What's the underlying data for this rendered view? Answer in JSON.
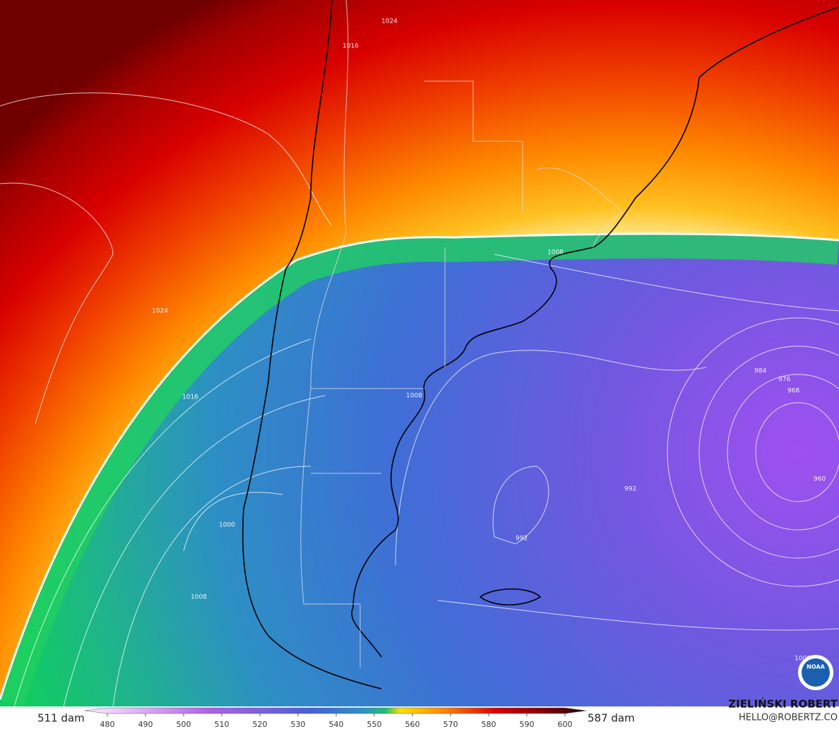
{
  "map": {
    "contour_labels": [
      "1024",
      "1016",
      "1016",
      "1024",
      "1008",
      "1008",
      "1000",
      "1008",
      "992",
      "984",
      "976",
      "968",
      "960",
      "992",
      "1000"
    ],
    "logo": "NOAA"
  },
  "colorbar": {
    "min_label": "511 dam",
    "max_label": "587 dam",
    "ticks": [
      480,
      490,
      500,
      510,
      520,
      530,
      540,
      550,
      560,
      570,
      580,
      590,
      600
    ]
  },
  "credit": {
    "name": "ZIELIŃSKI ROBERT",
    "email": "HELLO@ROBERTZ.CO"
  }
}
